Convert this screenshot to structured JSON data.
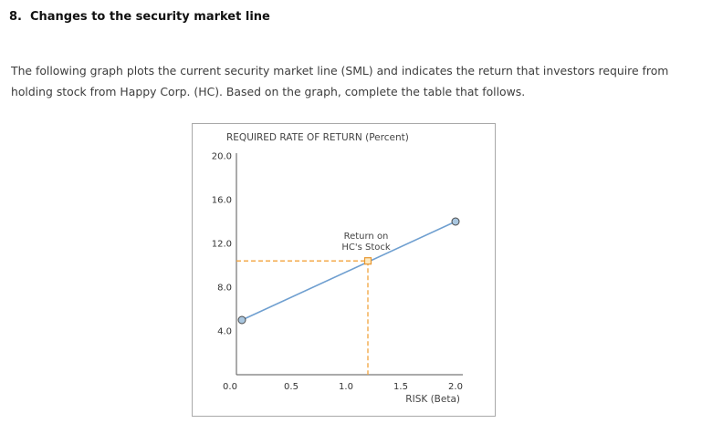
{
  "page": {
    "heading_number": "8.",
    "heading_text": "Changes to the security market line",
    "paragraph": "The following graph plots the current security market line (SML) and indicates the return that investors require from holding stock from Happy Corp. (HC). Based on the graph, complete the table that follows."
  },
  "chart_data": {
    "type": "line",
    "title": "REQUIRED RATE OF RETURN (Percent)",
    "xlabel": "RISK (Beta)",
    "xlim": [
      0,
      2.0
    ],
    "ylim": [
      0,
      20.0
    ],
    "x_ticks": [
      0.0,
      0.5,
      1.0,
      1.5,
      2.0
    ],
    "y_ticks": [
      4.0,
      8.0,
      12.0,
      16.0,
      20.0
    ],
    "grid": false,
    "legend": "none",
    "series": [
      {
        "name": "SML",
        "x": [
          0.05,
          2.0
        ],
        "y": [
          5.0,
          14.0
        ],
        "color": "#6f9fd0",
        "marker": "circle",
        "marker_fill": "#a9c6df",
        "marker_stroke": "#4a4a4a"
      }
    ],
    "hc_point": {
      "x": 1.2,
      "y": 10.4,
      "marker": "square",
      "fill": "#fdeac2",
      "stroke": "#e8962e"
    },
    "dashed": {
      "color": "#f2a33c",
      "h_value": 10.4,
      "v_value": 1.2
    },
    "annotation": {
      "line1": "Return on",
      "line2": "HC's Stock"
    }
  }
}
